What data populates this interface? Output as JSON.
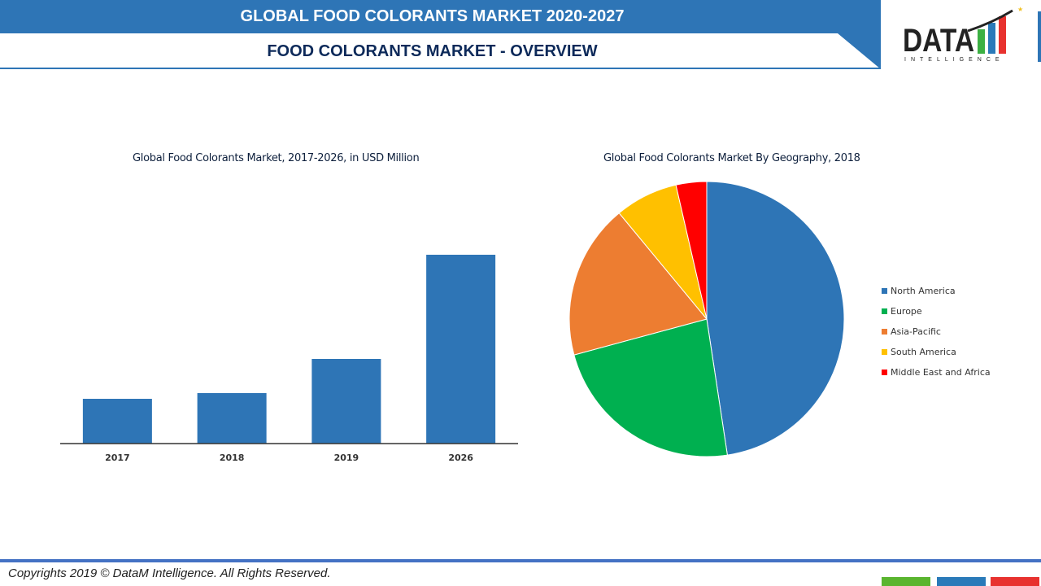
{
  "header": {
    "title": "GLOBAL FOOD COLORANTS MARKET 2020-2027",
    "subtitle": "FOOD COLORANTS MARKET - OVERVIEW"
  },
  "logo": {
    "text": "DATA",
    "subtext": "INTELLIGENCE"
  },
  "footer": {
    "copyright": "Copyrights 2019 © DataM Intelligence. All Rights Reserved."
  },
  "colors": {
    "accent": "#2e75b6",
    "bar": "#2e75b6",
    "footer_green": "#5ab52f",
    "footer_blue": "#2a7ab9",
    "footer_red": "#e8322f"
  },
  "chart_data": [
    {
      "type": "bar",
      "title": "Global Food Colorants Market, 2017-2026, in USD Million",
      "categories": [
        "2017",
        "2018",
        "2019",
        "2026"
      ],
      "values": [
        55,
        62,
        104,
        232
      ],
      "ylim": [
        0,
        240
      ],
      "grid": false,
      "xlabel": "",
      "ylabel": ""
    },
    {
      "type": "pie",
      "title": "Global Food Colorants Market By Geography, 2018",
      "legend_position": "right",
      "slices": [
        {
          "name": "North America",
          "value": 47.6,
          "color": "#2e75b6"
        },
        {
          "name": "Europe",
          "value": 23.2,
          "color": "#00b050"
        },
        {
          "name": "Asia-Pacific",
          "value": 18.2,
          "color": "#ed7d31"
        },
        {
          "name": "South America",
          "value": 7.4,
          "color": "#ffc000"
        },
        {
          "name": "Middle East and Africa",
          "value": 3.6,
          "color": "#ff0000"
        }
      ]
    }
  ]
}
